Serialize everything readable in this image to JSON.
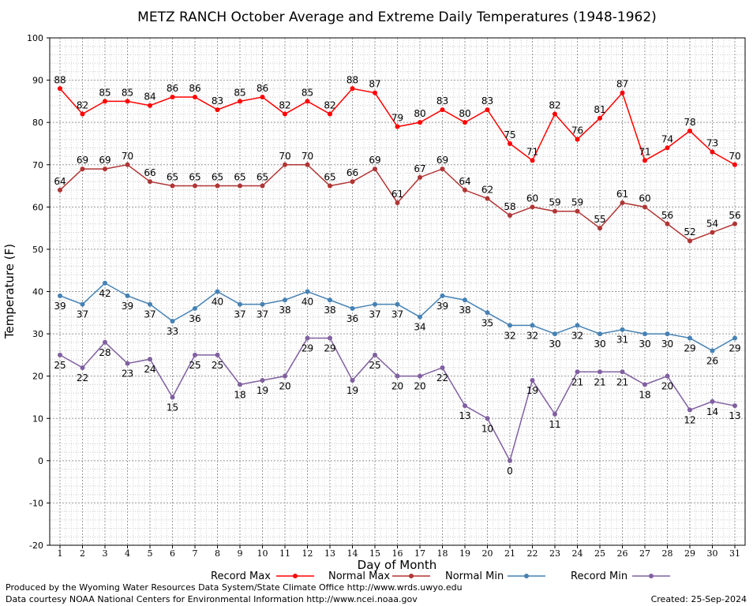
{
  "chart_data": {
    "type": "line",
    "title": "METZ RANCH October Average and Extreme Daily Temperatures (1948-1962)",
    "xlabel": "Day of Month",
    "ylabel": "Temperature (F)",
    "ylim": [
      -20,
      100
    ],
    "grid": true,
    "legend_position": "bottom",
    "x": [
      1,
      2,
      3,
      4,
      5,
      6,
      7,
      8,
      9,
      10,
      11,
      12,
      13,
      14,
      15,
      16,
      17,
      18,
      19,
      20,
      21,
      22,
      23,
      24,
      25,
      26,
      27,
      28,
      29,
      30,
      31
    ],
    "series": [
      {
        "name": "Record Max",
        "color": "#ff0000",
        "values": [
          88,
          82,
          85,
          85,
          84,
          86,
          86,
          83,
          85,
          86,
          82,
          85,
          82,
          88,
          87,
          79,
          80,
          83,
          80,
          83,
          75,
          71,
          82,
          76,
          81,
          87,
          71,
          74,
          78,
          73,
          70
        ]
      },
      {
        "name": "Normal Max",
        "color": "#b03535",
        "values": [
          64,
          69,
          69,
          70,
          66,
          65,
          65,
          65,
          65,
          65,
          70,
          70,
          65,
          66,
          69,
          61,
          67,
          69,
          64,
          62,
          58,
          60,
          59,
          59,
          55,
          61,
          60,
          56,
          52,
          54,
          56
        ]
      },
      {
        "name": "Normal Min",
        "color": "#4682b4",
        "values": [
          39,
          37,
          42,
          39,
          37,
          33,
          36,
          40,
          37,
          37,
          38,
          40,
          38,
          36,
          37,
          37,
          34,
          39,
          38,
          35,
          32,
          32,
          30,
          32,
          30,
          31,
          30,
          30,
          29,
          26,
          29
        ]
      },
      {
        "name": "Record Min",
        "color": "#8060a0",
        "values": [
          25,
          22,
          28,
          23,
          24,
          15,
          25,
          25,
          18,
          19,
          20,
          29,
          29,
          19,
          25,
          20,
          20,
          22,
          13,
          10,
          0,
          19,
          11,
          21,
          21,
          21,
          18,
          20,
          12,
          14,
          13
        ]
      }
    ]
  },
  "footer": {
    "produced_by": "Produced by the Wyoming Water Resources Data System/State Climate Office http://www.wrds.uwyo.edu",
    "data_courtesy": "Data courtesy NOAA National Centers for Environmental Information http://www.ncei.noaa.gov",
    "created": "Created:  25-Sep-2024"
  }
}
